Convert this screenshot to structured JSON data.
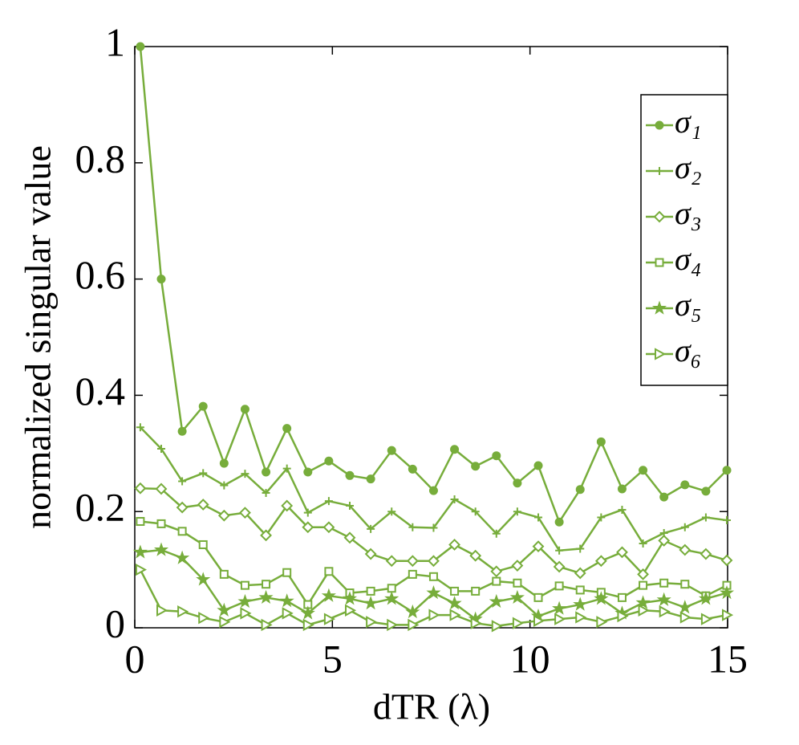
{
  "chart_data": {
    "type": "line",
    "x_label": "dTR (λ)",
    "y_label": "normalized singular value",
    "x": [
      0.14,
      0.67,
      1.2,
      1.73,
      2.26,
      2.79,
      3.32,
      3.85,
      4.38,
      4.91,
      5.44,
      5.97,
      6.5,
      7.03,
      7.56,
      8.09,
      8.62,
      9.15,
      9.68,
      10.21,
      10.74,
      11.27,
      11.8,
      12.33,
      12.86,
      13.39,
      13.92,
      14.45,
      14.98
    ],
    "series": [
      {
        "name": "σ₁",
        "color": "#77ad3b",
        "marker": "circle",
        "values": [
          1.0,
          0.6,
          0.338,
          0.381,
          0.283,
          0.376,
          0.268,
          0.343,
          0.268,
          0.287,
          0.262,
          0.256,
          0.305,
          0.273,
          0.236,
          0.307,
          0.278,
          0.296,
          0.249,
          0.279,
          0.182,
          0.238,
          0.32,
          0.239,
          0.271,
          0.225,
          0.246,
          0.235,
          0.271
        ]
      },
      {
        "name": "σ₂",
        "color": "#77ad3b",
        "marker": "plus",
        "values": [
          0.345,
          0.308,
          0.252,
          0.266,
          0.245,
          0.265,
          0.232,
          0.274,
          0.198,
          0.218,
          0.21,
          0.17,
          0.2,
          0.173,
          0.172,
          0.221,
          0.2,
          0.162,
          0.2,
          0.19,
          0.133,
          0.136,
          0.19,
          0.203,
          0.145,
          0.163,
          0.173,
          0.19,
          0.185
        ]
      },
      {
        "name": "σ₃",
        "color": "#77ad3b",
        "marker": "diamond",
        "values": [
          0.24,
          0.239,
          0.207,
          0.212,
          0.193,
          0.198,
          0.159,
          0.21,
          0.173,
          0.173,
          0.155,
          0.127,
          0.115,
          0.115,
          0.115,
          0.143,
          0.124,
          0.097,
          0.107,
          0.14,
          0.105,
          0.094,
          0.115,
          0.13,
          0.092,
          0.15,
          0.134,
          0.127,
          0.116
        ]
      },
      {
        "name": "σ₄",
        "color": "#77ad3b",
        "marker": "square",
        "values": [
          0.183,
          0.179,
          0.166,
          0.143,
          0.092,
          0.073,
          0.075,
          0.095,
          0.04,
          0.097,
          0.06,
          0.063,
          0.068,
          0.092,
          0.088,
          0.063,
          0.063,
          0.08,
          0.077,
          0.052,
          0.072,
          0.065,
          0.061,
          0.052,
          0.073,
          0.077,
          0.075,
          0.055,
          0.073
        ]
      },
      {
        "name": "σ₅",
        "color": "#77ad3b",
        "marker": "star",
        "values": [
          0.13,
          0.134,
          0.12,
          0.083,
          0.03,
          0.045,
          0.052,
          0.046,
          0.025,
          0.055,
          0.05,
          0.042,
          0.05,
          0.027,
          0.06,
          0.042,
          0.015,
          0.045,
          0.052,
          0.02,
          0.033,
          0.04,
          0.05,
          0.025,
          0.043,
          0.048,
          0.035,
          0.05,
          0.06
        ]
      },
      {
        "name": "σ₆",
        "color": "#77ad3b",
        "marker": "triangle-right",
        "values": [
          0.1,
          0.03,
          0.028,
          0.017,
          0.01,
          0.025,
          0.005,
          0.025,
          0.005,
          0.015,
          0.03,
          0.01,
          0.005,
          0.005,
          0.022,
          0.022,
          0.008,
          0.003,
          0.008,
          0.012,
          0.015,
          0.018,
          0.01,
          0.02,
          0.03,
          0.028,
          0.018,
          0.015,
          0.022
        ]
      }
    ],
    "xlim": [
      0,
      15
    ],
    "xticks": [
      0,
      5,
      10,
      15
    ],
    "ylim": [
      0,
      1
    ],
    "yticks": [
      0,
      0.2,
      0.4,
      0.6,
      0.8,
      1
    ],
    "legend": "upper right",
    "grid": false
  }
}
